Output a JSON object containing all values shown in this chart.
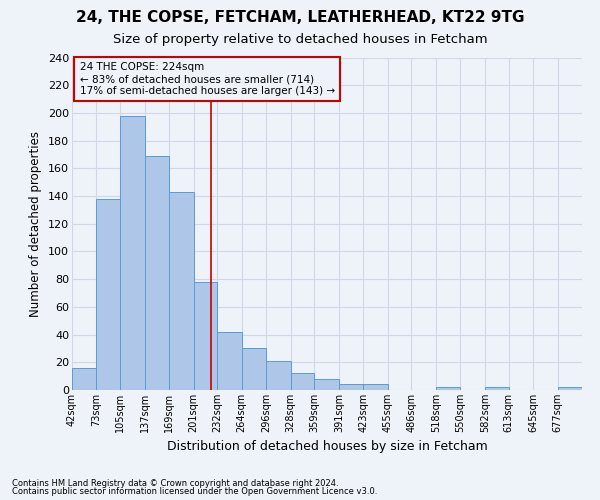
{
  "title1": "24, THE COPSE, FETCHAM, LEATHERHEAD, KT22 9TG",
  "title2": "Size of property relative to detached houses in Fetcham",
  "xlabel": "Distribution of detached houses by size in Fetcham",
  "ylabel": "Number of detached properties",
  "bin_labels": [
    "42sqm",
    "73sqm",
    "105sqm",
    "137sqm",
    "169sqm",
    "201sqm",
    "232sqm",
    "264sqm",
    "296sqm",
    "328sqm",
    "359sqm",
    "391sqm",
    "423sqm",
    "455sqm",
    "486sqm",
    "518sqm",
    "550sqm",
    "582sqm",
    "613sqm",
    "645sqm",
    "677sqm"
  ],
  "bin_edges": [
    42,
    73,
    105,
    137,
    169,
    201,
    232,
    264,
    296,
    328,
    359,
    391,
    423,
    455,
    486,
    518,
    550,
    582,
    613,
    645,
    677,
    709
  ],
  "values": [
    16,
    138,
    198,
    169,
    143,
    78,
    42,
    30,
    21,
    12,
    8,
    4,
    4,
    0,
    0,
    2,
    0,
    2,
    0,
    0,
    2
  ],
  "bar_color": "#aec6e8",
  "bar_edge_color": "#5b9bd5",
  "grid_color": "#d0d8e8",
  "marker_value": 224,
  "marker_color": "#cc0000",
  "annotation_title": "24 THE COPSE: 224sqm",
  "annotation_line1": "← 83% of detached houses are smaller (714)",
  "annotation_line2": "17% of semi-detached houses are larger (143) →",
  "annotation_box_color": "#cc0000",
  "footer1": "Contains HM Land Registry data © Crown copyright and database right 2024.",
  "footer2": "Contains public sector information licensed under the Open Government Licence v3.0.",
  "ylim": [
    0,
    240
  ],
  "yticks": [
    0,
    20,
    40,
    60,
    80,
    100,
    120,
    140,
    160,
    180,
    200,
    220,
    240
  ],
  "background_color": "#eef2f9",
  "title_fontsize": 11,
  "subtitle_fontsize": 9.5
}
